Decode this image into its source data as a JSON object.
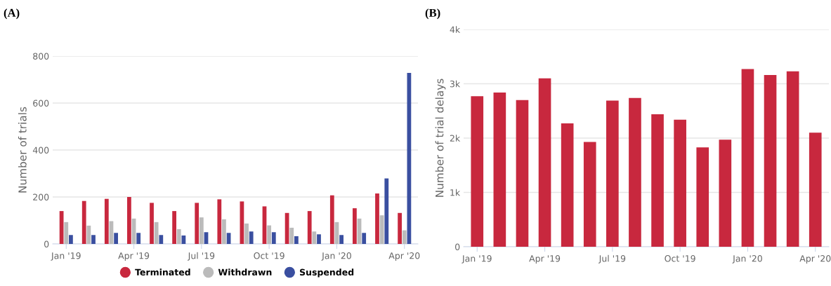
{
  "chart_data": [
    {
      "type": "bar",
      "title": "(A)",
      "ylabel": "Number of trials",
      "categories": [
        "Jan '19",
        null,
        null,
        "Apr '19",
        null,
        null,
        "Jul '19",
        null,
        null,
        "Oct '19",
        null,
        null,
        "Jan '20",
        null,
        null,
        "Apr '20"
      ],
      "series": [
        {
          "name": "Terminated",
          "color": "#c8283e",
          "values": [
            140,
            183,
            192,
            200,
            175,
            140,
            175,
            190,
            181,
            160,
            132,
            140,
            207,
            152,
            215,
            132
          ]
        },
        {
          "name": "Withdrawn",
          "color": "#bbbbbb",
          "values": [
            93,
            78,
            97,
            108,
            93,
            63,
            113,
            105,
            87,
            79,
            69,
            53,
            93,
            108,
            122,
            58
          ]
        },
        {
          "name": "Suspended",
          "color": "#3a4fa0",
          "values": [
            38,
            38,
            47,
            47,
            38,
            36,
            50,
            47,
            53,
            50,
            33,
            41,
            38,
            47,
            279,
            728
          ]
        }
      ],
      "ylim": [
        0,
        800
      ],
      "yticks": [
        0,
        200,
        400,
        600,
        800
      ],
      "grid": "y",
      "legend": "bottom"
    },
    {
      "type": "bar",
      "title": "(B)",
      "ylabel": "Number of trial delays",
      "categories": [
        "Jan '19",
        null,
        null,
        "Apr '19",
        null,
        null,
        "Jul '19",
        null,
        null,
        "Oct '19",
        null,
        null,
        "Jan '20",
        null,
        null,
        "Apr '20"
      ],
      "color": "#c8283e",
      "values": [
        2770,
        2840,
        2700,
        3100,
        2270,
        1930,
        2690,
        2740,
        2440,
        2340,
        1830,
        1970,
        3270,
        3160,
        3230,
        2100
      ],
      "ylim": [
        0,
        4000
      ],
      "yticks": [
        0,
        {
          "value": 1000,
          "label": "1k"
        },
        {
          "value": 2000,
          "label": "2k"
        },
        {
          "value": 3000,
          "label": "3k"
        },
        {
          "value": 4000,
          "label": "4k"
        }
      ],
      "grid": "y"
    }
  ]
}
